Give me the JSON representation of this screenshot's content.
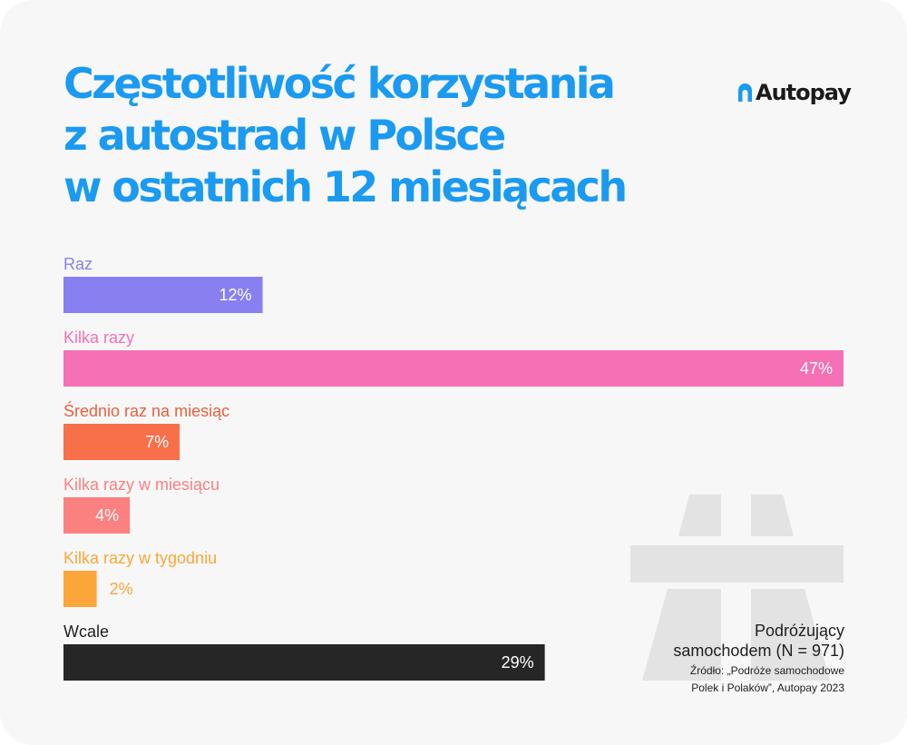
{
  "title_lines": [
    "Częstotliwość korzystania",
    "z autostrad w Polsce",
    "w ostatnich 12 miesiącach"
  ],
  "logo": {
    "text": "Autopay",
    "icon": "autopay-logo-icon"
  },
  "note": {
    "line1": "Podróżujący",
    "line2": "samochodem (N = 971)",
    "source1": "Źródło: „Podróże samochodowe",
    "source2": "Polek i Polaków”, Autopay 2023"
  },
  "watermark_icon": "highway-icon",
  "colors": {
    "title": "#1a9af0",
    "background": "#f7f7f7",
    "watermark": "#e3e3e3"
  },
  "chart_data": {
    "type": "bar",
    "orientation": "horizontal",
    "categories": [
      "Raz",
      "Kilka razy",
      "Średnio raz na miesiąc",
      "Kilka razy w miesiącu",
      "Kilka razy w tygodniu",
      "Wcale"
    ],
    "values": [
      12,
      47,
      7,
      4,
      2,
      29
    ],
    "labels": [
      "12%",
      "47%",
      "7%",
      "4%",
      "2%",
      "29%"
    ],
    "unit": "%",
    "colors": [
      "#8880f0",
      "#f570b4",
      "#f7704a",
      "#fb8080",
      "#fba63a",
      "#262626"
    ],
    "label_colors": [
      "#8880f0",
      "#f570b4",
      "#e8603e",
      "#fb8080",
      "#fba63a",
      "#1f1f1f"
    ],
    "xlim": [
      0,
      47
    ]
  }
}
